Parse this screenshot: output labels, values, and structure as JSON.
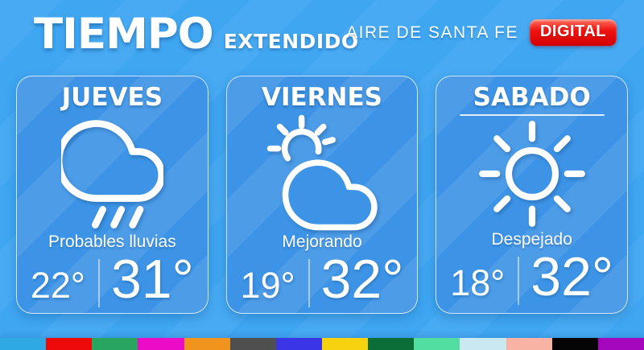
{
  "header": {
    "title": "TIEMPO",
    "subtitle": "EXTENDIDO",
    "brand": "AIRE DE SANTA FE",
    "badge_label": "DIGITAL"
  },
  "cards": [
    {
      "day": "JUEVES",
      "icon": "rain-cloud-icon",
      "condition": "Probables lluvias",
      "temp_min": "22°",
      "temp_max": "31°"
    },
    {
      "day": "VIERNES",
      "icon": "sun-behind-cloud-icon",
      "condition": "Mejorando",
      "temp_min": "19°",
      "temp_max": "32°"
    },
    {
      "day": "SABADO",
      "icon": "sun-icon",
      "condition": "Despejado",
      "temp_min": "18°",
      "temp_max": "32°"
    }
  ],
  "colors": {
    "background": "#3FA6F2",
    "card": "#3D94E6",
    "badge_red": "#E31010",
    "text": "#FFFFFF"
  },
  "palette_strip": [
    "#2EA9E2",
    "#EE0A0A",
    "#28A55F",
    "#EC0BC6",
    "#F0941E",
    "#4F4F4F",
    "#3A35E6",
    "#F6D30E",
    "#0B6E38",
    "#52DEA0",
    "#C9E8F2",
    "#F8B3A4",
    "#050505",
    "#A507BE"
  ]
}
